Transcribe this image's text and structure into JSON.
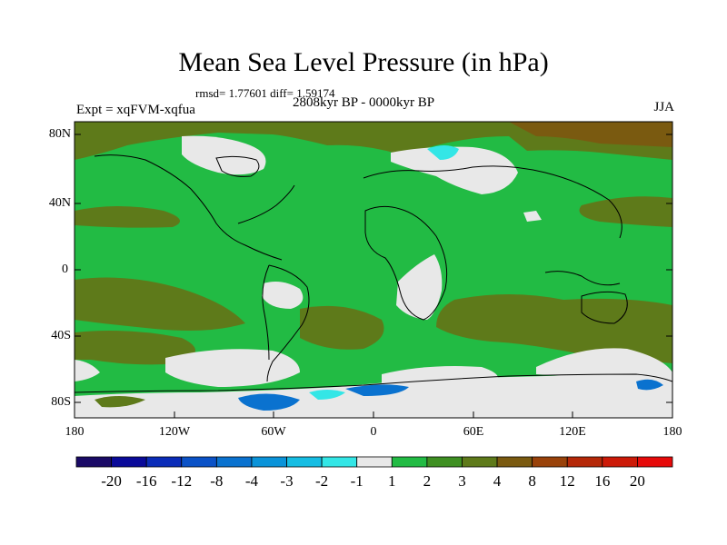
{
  "title": "Mean Sea Level Pressure (in hPa)",
  "stats": "rmsd= 1.77601 diff= 1.59174",
  "period": "2808kyr BP - 0000kyr BP",
  "experiment": "Expt = xqFVM-xqfua",
  "season": "JJA",
  "lat_ticks": [
    "80N",
    "40N",
    "0",
    "40S",
    "80S"
  ],
  "lon_ticks": [
    "180",
    "120W",
    "60W",
    "0",
    "60E",
    "120E",
    "180"
  ],
  "colorbar": {
    "labels": [
      "-20",
      "-16",
      "-12",
      "-8",
      "-4",
      "-3",
      "-2",
      "-1",
      "1",
      "2",
      "3",
      "4",
      "8",
      "12",
      "16",
      "20"
    ],
    "colors": [
      "#1a0a66",
      "#0a0a99",
      "#0b2cb8",
      "#0b52c7",
      "#0a72cf",
      "#0a93d9",
      "#16bde3",
      "#33e6e6",
      "#e8e8e8",
      "#22bb44",
      "#3e8f22",
      "#5e7a1a",
      "#7a5a10",
      "#99420a",
      "#b52808",
      "#cc1a08",
      "#e60a0a"
    ]
  },
  "palette": {
    "green": "#22bb44",
    "olive": "#5e7a1a",
    "dark_green": "#3e8f22",
    "brown": "#7a5a10",
    "white": "#e8e8e8",
    "cyan": "#33e6e6",
    "blue": "#0a72cf",
    "coast": "#000000"
  }
}
